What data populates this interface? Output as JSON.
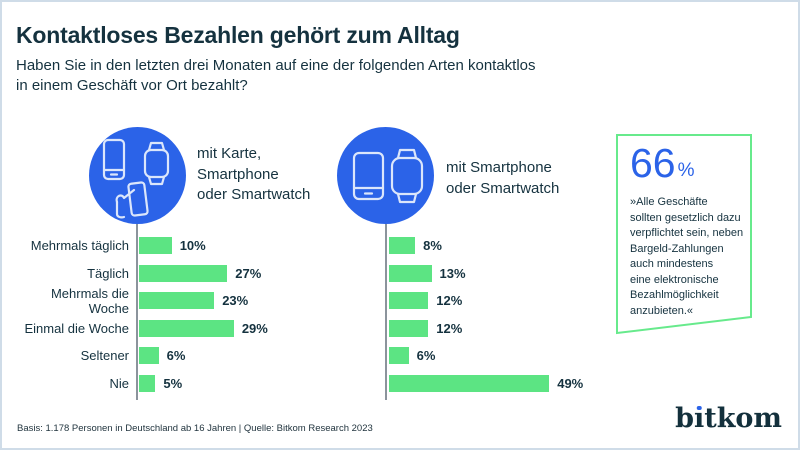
{
  "page": {
    "title": "Kontaktloses Bezahlen gehört zum Alltag",
    "subtitle": "Haben Sie in den letzten drei Monaten auf eine der folgenden Arten kontaktlos\nin einem Geschäft vor Ort bezahlt?"
  },
  "colors": {
    "accent_blue": "#2b63e8",
    "bar_green": "#5ce483",
    "callout_border_green": "#67ea8c",
    "dark_navy_text": "#15323f"
  },
  "chart_data": [
    {
      "type": "bar",
      "orientation": "horizontal",
      "group_label": "mit Karte,\nSmartphone\noder Smartwatch",
      "group_icons": [
        "smartphone-icon",
        "smartwatch-icon",
        "card-in-hand-icon"
      ],
      "categories": [
        "Mehrmals täglich",
        "Täglich",
        "Mehrmals die Woche",
        "Einmal die Woche",
        "Seltener",
        "Nie"
      ],
      "values": [
        10,
        27,
        23,
        29,
        6,
        5
      ],
      "value_labels": [
        "10%",
        "27%",
        "23%",
        "29%",
        "6%",
        "5%"
      ],
      "unit": "%",
      "xlim": [
        0,
        50
      ],
      "grid": false,
      "legend": false
    },
    {
      "type": "bar",
      "orientation": "horizontal",
      "group_label": "mit Smartphone\noder Smartwatch",
      "group_icons": [
        "smartphone-icon",
        "smartwatch-icon"
      ],
      "categories": [
        "Mehrmals täglich",
        "Täglich",
        "Mehrmals die Woche",
        "Einmal die Woche",
        "Seltener",
        "Nie"
      ],
      "values": [
        8,
        13,
        12,
        12,
        6,
        49
      ],
      "value_labels": [
        "8%",
        "13%",
        "12%",
        "12%",
        "6%",
        "49%"
      ],
      "unit": "%",
      "xlim": [
        0,
        50
      ],
      "grid": false,
      "legend": false
    }
  ],
  "callout": {
    "stat_value": "66",
    "stat_unit": "%",
    "quote": "»Alle Geschäfte\nsollten gesetzlich dazu\nverpflichtet sein, neben\nBargeld-Zahlungen\nauch mindestens\neine elektronische\nBezahlmöglichkeit\nanzubieten.«"
  },
  "footer": {
    "basis": "Basis: 1.178 Personen in Deutschland ab 16 Jahren | Quelle: Bitkom Research 2023",
    "logo": {
      "b": "b",
      "i": "ı",
      "rest": "tkom"
    }
  }
}
